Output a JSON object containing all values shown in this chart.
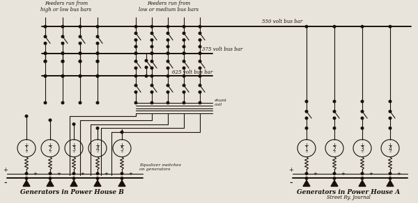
{
  "bg_color": "#e8e4dc",
  "line_color": "#1a1008",
  "label_powerhouse_b": "Generators in Power House B",
  "label_powerhouse_a": "Generators in Power House A",
  "label_street_ry": "Street Ry. Journal",
  "label_feeders_high": "Feeders run from\nhigh or low bus bars",
  "label_feeders_low": "Feeders run from\nlow or medium bus bars",
  "label_550v": "550 volt bus bar",
  "label_375v": "375 volt bus bar",
  "label_625v": "625 volt bus bar",
  "label_shunt": "shunt\ncoil",
  "label_equalizer": "Equalizer switches\non generators",
  "label_minus_b": "-",
  "label_minus_a": "-"
}
